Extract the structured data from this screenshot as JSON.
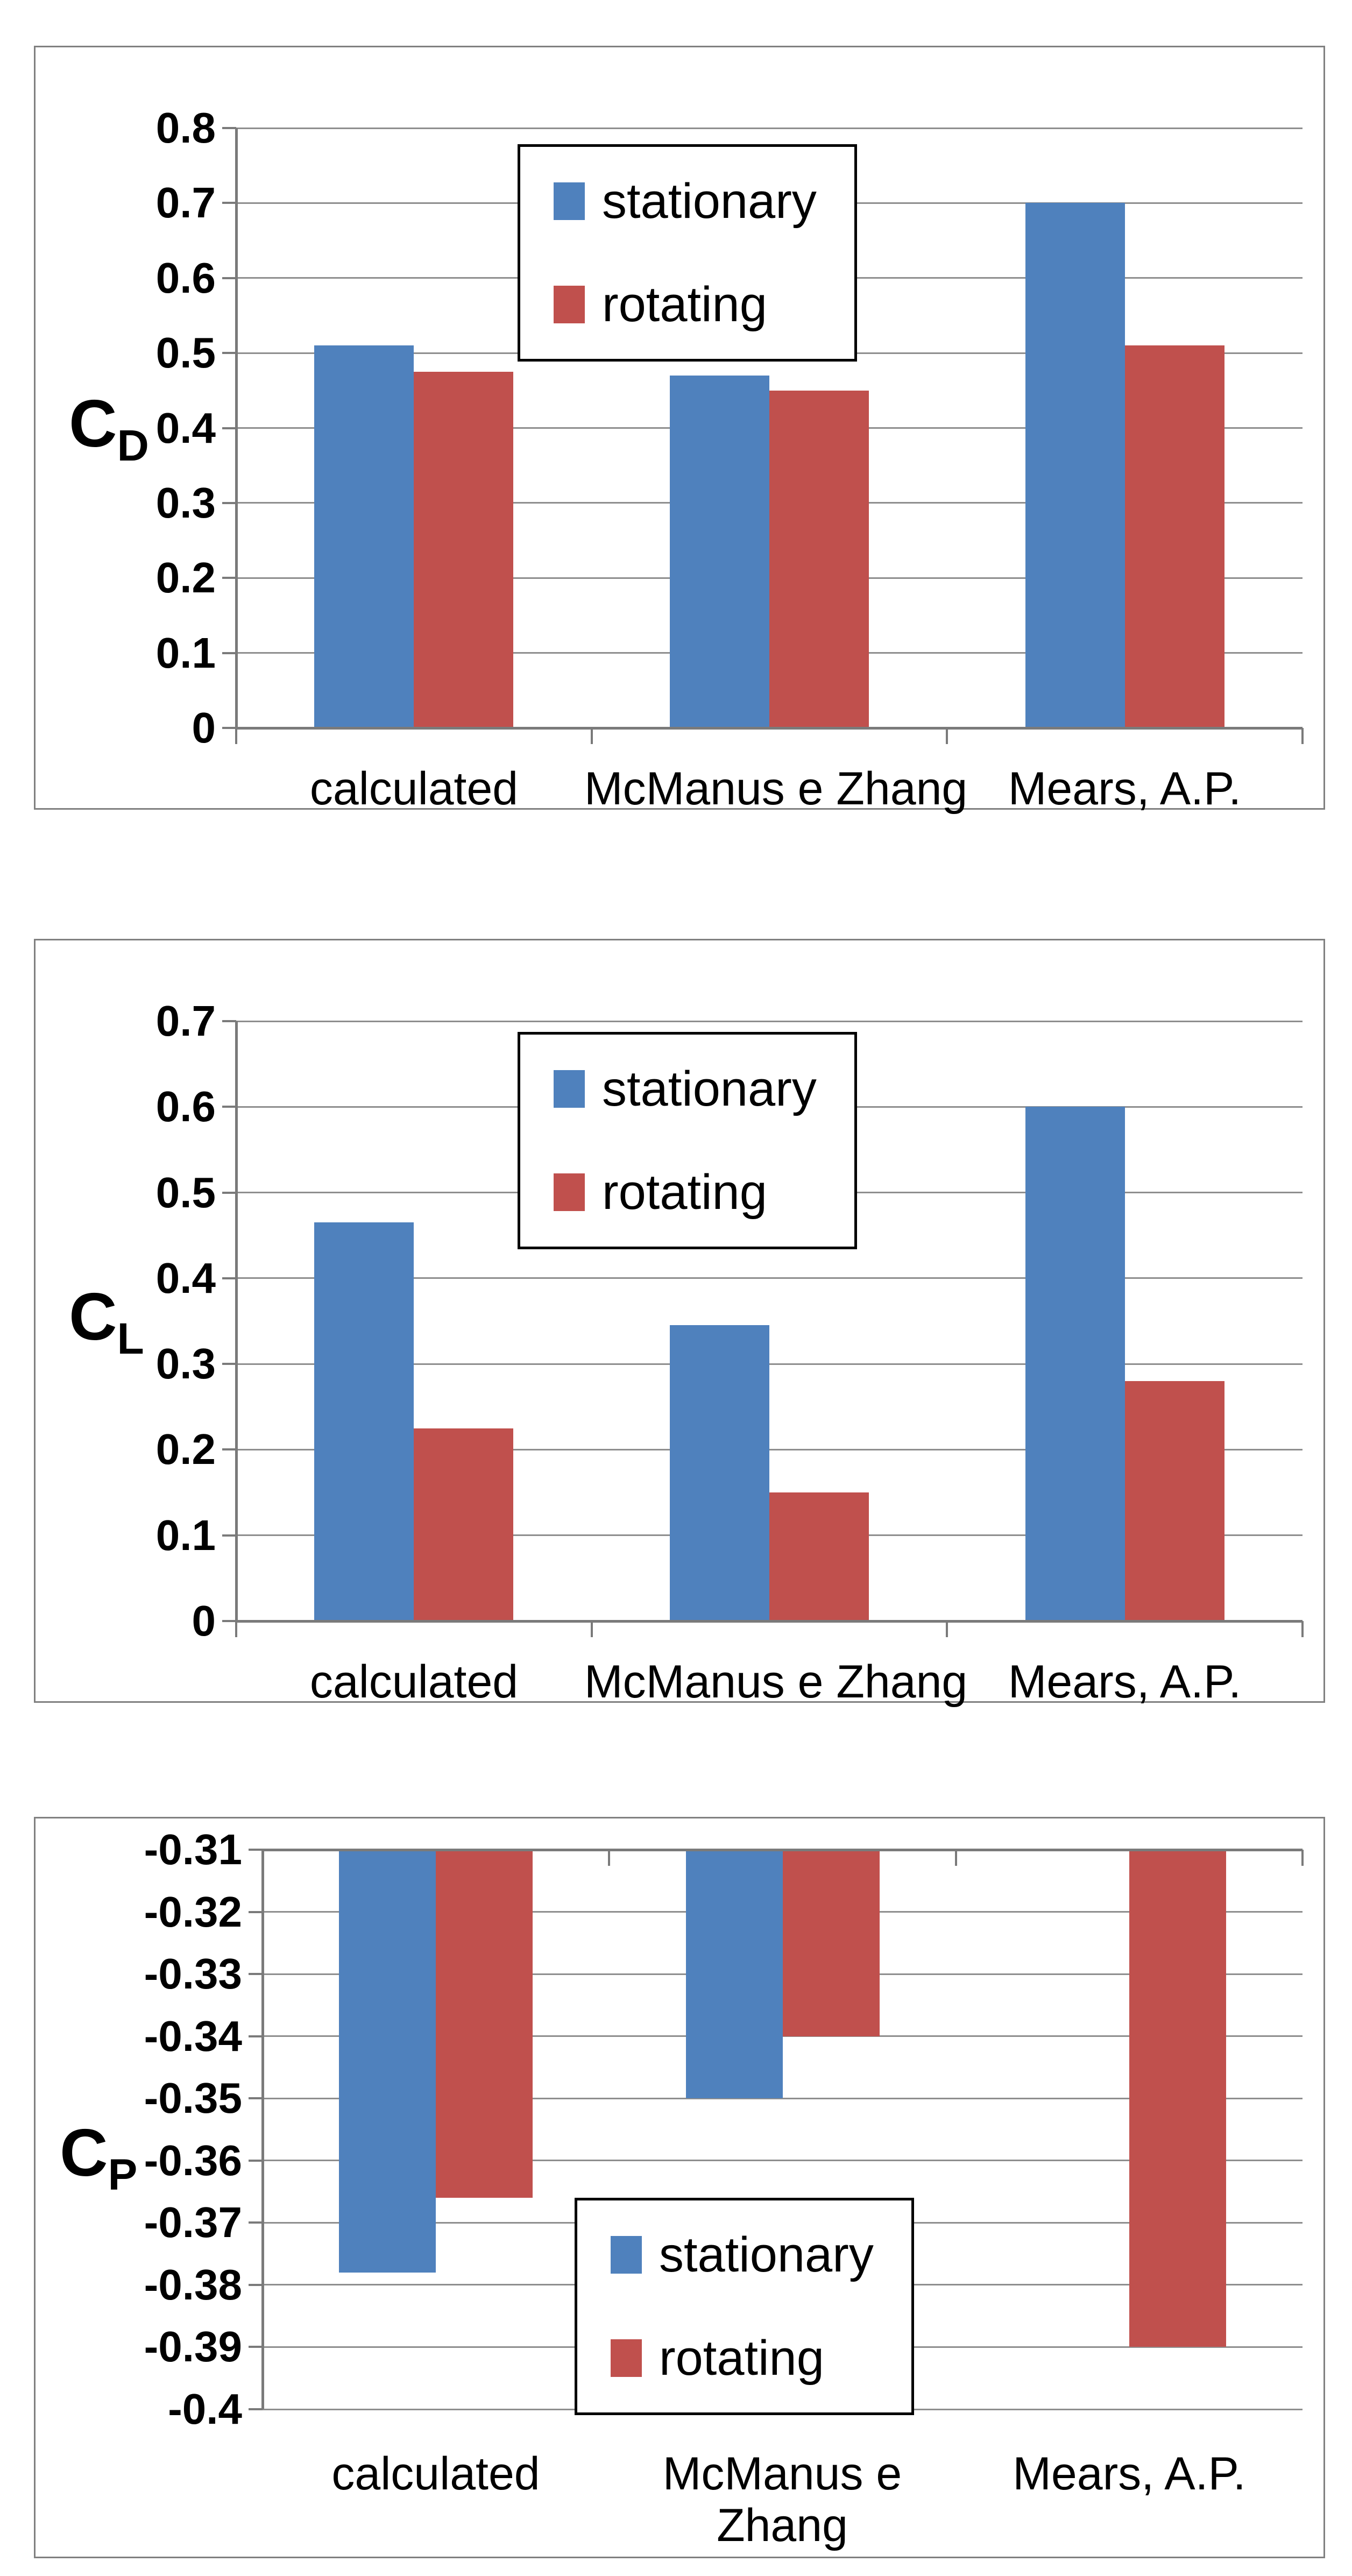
{
  "page": {
    "background": "#ffffff"
  },
  "colors": {
    "stationary": "#4F81BD",
    "rotating": "#C0504D",
    "gridline": "#8E8E8E",
    "axis_line": "#7A7A7A",
    "chart_border": "#808080",
    "legend_border": "#000000",
    "text": "#000000",
    "background": "#ffffff"
  },
  "legend": {
    "items": [
      {
        "label": "stationary",
        "color": "#4F81BD"
      },
      {
        "label": "rotating",
        "color": "#C0504D"
      }
    ]
  },
  "chart_data": [
    {
      "id": "CD",
      "type": "bar",
      "title": "",
      "ylabel": "C_D",
      "ylabel_base": "C",
      "ylabel_sub": "D",
      "xlabel": "",
      "categories": [
        "calculated",
        "McManus e Zhang",
        "Mears, A.P."
      ],
      "series": [
        {
          "name": "stationary",
          "color": "#4F81BD",
          "values": [
            0.51,
            0.47,
            0.7
          ]
        },
        {
          "name": "rotating",
          "color": "#C0504D",
          "values": [
            0.475,
            0.45,
            0.51
          ]
        }
      ],
      "ylim": [
        0,
        0.8
      ],
      "ytick_step": 0.1,
      "ytick_labels": [
        "0.8",
        "0.7",
        "0.6",
        "0.5",
        "0.4",
        "0.3",
        "0.2",
        "0.1",
        "0"
      ],
      "grid": true,
      "legend_position": "top-center"
    },
    {
      "id": "CL",
      "type": "bar",
      "title": "",
      "ylabel": "C_L",
      "ylabel_base": "C",
      "ylabel_sub": "L",
      "xlabel": "",
      "categories": [
        "calculated",
        "McManus e Zhang",
        "Mears, A.P."
      ],
      "series": [
        {
          "name": "stationary",
          "color": "#4F81BD",
          "values": [
            0.465,
            0.345,
            0.6
          ]
        },
        {
          "name": "rotating",
          "color": "#C0504D",
          "values": [
            0.225,
            0.15,
            0.28
          ]
        }
      ],
      "ylim": [
        0,
        0.7
      ],
      "ytick_step": 0.1,
      "ytick_labels": [
        "0.7",
        "0.6",
        "0.5",
        "0.4",
        "0.3",
        "0.2",
        "0.1",
        "0"
      ],
      "grid": true,
      "legend_position": "top-center"
    },
    {
      "id": "CP",
      "type": "bar",
      "title": "",
      "ylabel": "C_P",
      "ylabel_base": "C",
      "ylabel_sub": "P",
      "xlabel": "",
      "categories": [
        "calculated",
        "McManus e Zhang",
        "Mears, A.P."
      ],
      "series": [
        {
          "name": "stationary",
          "color": "#4F81BD",
          "values": [
            -0.378,
            -0.35,
            null
          ]
        },
        {
          "name": "rotating",
          "color": "#C0504D",
          "values": [
            -0.366,
            -0.34,
            -0.39
          ]
        }
      ],
      "ylim": [
        -0.4,
        -0.31
      ],
      "ytick_step": 0.01,
      "ytick_labels": [
        "-0.31",
        "-0.32",
        "-0.33",
        "-0.34",
        "-0.35",
        "-0.36",
        "-0.37",
        "-0.38",
        "-0.39",
        "-0.4"
      ],
      "grid": true,
      "legend_position": "bottom-center"
    }
  ]
}
